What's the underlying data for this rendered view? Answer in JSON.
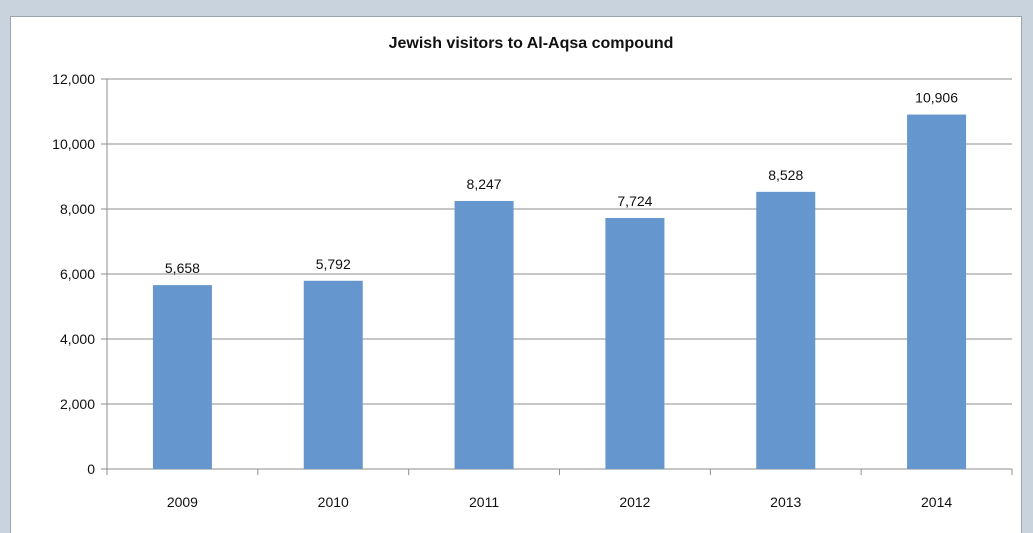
{
  "chart_data": {
    "type": "bar",
    "title": "Jewish visitors to Al-Aqsa compound",
    "categories": [
      "2009",
      "2010",
      "2011",
      "2012",
      "2013",
      "2014"
    ],
    "values": [
      5658,
      5792,
      8247,
      7724,
      8528,
      10906
    ],
    "value_labels": [
      "5,658",
      "5,792",
      "8,247",
      "7,724",
      "8,528",
      "10,906"
    ],
    "yticks": [
      "0",
      "2,000",
      "4,000",
      "6,000",
      "8,000",
      "10,000",
      "12,000"
    ],
    "ylim": [
      0,
      12000
    ],
    "grid": true,
    "legend": "none",
    "bar_color": "#6596cd",
    "grid_color": "#8e8e8e"
  }
}
